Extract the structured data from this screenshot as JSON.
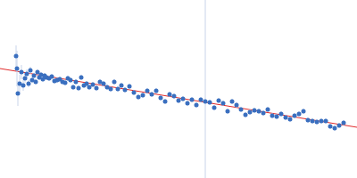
{
  "chart_data": {
    "type": "scatter",
    "tick_labels": false,
    "grid": false,
    "xlim": [
      0,
      400
    ],
    "ylim": [
      0,
      200
    ],
    "series": [
      {
        "type": "scatter",
        "marker": "circle",
        "color": "#3a6fbf",
        "x": [
          18,
          19,
          20,
          22,
          24,
          26,
          28,
          30,
          32,
          34,
          36,
          38,
          40,
          42,
          44,
          46,
          48,
          50,
          52,
          55,
          58,
          61,
          64,
          67,
          70,
          73,
          76,
          79,
          82,
          85,
          88,
          91,
          94,
          97,
          100,
          104,
          108,
          112,
          116,
          120,
          124,
          128,
          132,
          136,
          140,
          145,
          150,
          155,
          160,
          165,
          170,
          175,
          180,
          185,
          190,
          195,
          200,
          205,
          210,
          215,
          220,
          225,
          230,
          235,
          240,
          245,
          250,
          255,
          260,
          265,
          270,
          275,
          280,
          285,
          290,
          295,
          300,
          305,
          310,
          315,
          320,
          325,
          330,
          335,
          340,
          345,
          350,
          355,
          360,
          365,
          370,
          375,
          380,
          385
        ],
        "values": [
          137,
          123,
          95,
          106,
          119,
          104,
          112,
          117,
          106,
          121,
          110,
          115,
          108,
          119,
          113,
          116,
          111,
          115,
          113,
          112,
          114,
          109,
          110,
          111,
          108,
          107,
          112,
          110,
          102,
          108,
          101,
          113,
          104,
          106,
          102,
          105,
          101,
          108,
          106,
          102,
          100,
          108,
          100,
          104,
          99,
          103,
          96,
          91,
          93,
          98,
          94,
          98,
          90,
          86,
          94,
          92,
          87,
          89,
          84,
          88,
          82,
          88,
          86,
          85,
          79,
          87,
          84,
          75,
          86,
          82,
          77,
          71,
          74,
          76,
          75,
          73,
          77,
          70,
          69,
          72,
          68,
          66,
          70,
          72,
          75,
          65,
          64,
          63,
          64,
          64,
          58,
          56,
          59,
          62
        ],
        "error": [
          12,
          20,
          14,
          10,
          8,
          6,
          5,
          5,
          4,
          4,
          3,
          3,
          3,
          3,
          3,
          3,
          3,
          3,
          3,
          3,
          3,
          3,
          3,
          3,
          3,
          3,
          3,
          3,
          3,
          3,
          3,
          3,
          3,
          3,
          3,
          3,
          3,
          3,
          3,
          3,
          3,
          3,
          3,
          3,
          3,
          3,
          3,
          3,
          3,
          3,
          3,
          3,
          3,
          3,
          3,
          3,
          3,
          3,
          3,
          3,
          3,
          3,
          3,
          3,
          3,
          3,
          3,
          3,
          3,
          3,
          3,
          3,
          3,
          3,
          3,
          3,
          3,
          3,
          3,
          3,
          3,
          3,
          3,
          3,
          3,
          3,
          3,
          3,
          3,
          3,
          3,
          3,
          3,
          3
        ]
      },
      {
        "type": "line",
        "line_style": "solid",
        "color": "#e02a2a",
        "x": [
          0,
          400
        ],
        "values": [
          123,
          57
        ]
      },
      {
        "type": "line",
        "line_style": "solid",
        "color": "#c8d4ea",
        "x": [
          230,
          230
        ],
        "values": [
          0,
          200
        ]
      }
    ]
  }
}
